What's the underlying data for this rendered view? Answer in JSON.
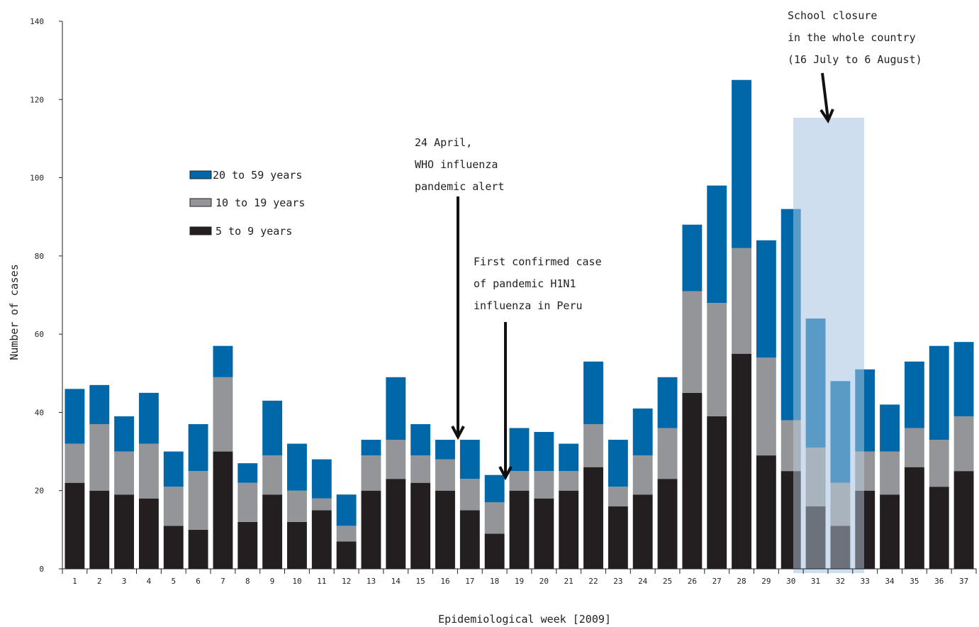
{
  "chart_data": {
    "type": "bar",
    "stacked": true,
    "xlabel": "Epidemiological week [2009]",
    "ylabel": "Number of cases",
    "ylim": [
      0,
      140
    ],
    "yticks": [
      0,
      20,
      40,
      60,
      80,
      100,
      120,
      140
    ],
    "grid": false,
    "legend_position": "upper-left",
    "categories": [
      "1",
      "2",
      "3",
      "4",
      "5",
      "6",
      "7",
      "8",
      "9",
      "10",
      "11",
      "12",
      "13",
      "14",
      "15",
      "16",
      "17",
      "18",
      "19",
      "20",
      "21",
      "22",
      "23",
      "24",
      "25",
      "26",
      "27",
      "28",
      "29",
      "30",
      "31",
      "32",
      "33",
      "34",
      "35",
      "36",
      "37"
    ],
    "series": [
      {
        "name": "5 to 9 years",
        "color": "#231f20",
        "values": [
          22,
          20,
          19,
          18,
          11,
          10,
          30,
          12,
          19,
          12,
          15,
          7,
          20,
          23,
          22,
          20,
          15,
          9,
          20,
          18,
          20,
          26,
          16,
          19,
          23,
          45,
          39,
          55,
          29,
          25,
          16,
          11,
          20,
          19,
          26,
          21,
          25
        ]
      },
      {
        "name": "10 to 19 years",
        "color": "#939598",
        "values": [
          10,
          17,
          11,
          14,
          10,
          15,
          19,
          10,
          10,
          8,
          3,
          4,
          9,
          10,
          7,
          8,
          8,
          8,
          5,
          7,
          5,
          11,
          5,
          10,
          13,
          26,
          29,
          27,
          25,
          13,
          15,
          11,
          10,
          11,
          10,
          12,
          14
        ]
      },
      {
        "name": "20 to 59 years",
        "color": "#0068a8",
        "values": [
          14,
          10,
          9,
          13,
          9,
          12,
          8,
          5,
          14,
          12,
          10,
          8,
          4,
          16,
          8,
          5,
          10,
          7,
          11,
          10,
          7,
          16,
          12,
          12,
          13,
          17,
          30,
          43,
          30,
          54,
          33,
          26,
          21,
          12,
          17,
          24,
          19
        ]
      }
    ],
    "legend_order": [
      "20 to 59 years",
      "10 to 19 years",
      "5 to 9 years"
    ],
    "highlight": {
      "from_week": "30",
      "to_week": "32",
      "color": "#c5d8eb"
    },
    "annotations": [
      {
        "id": "school",
        "lines": [
          "School closure",
          "in the whole country",
          "(16 July to 6 August)"
        ],
        "week": "31"
      },
      {
        "id": "who",
        "lines": [
          "24 April,",
          "WHO influenza",
          "pandemic alert"
        ],
        "week": "16-17"
      },
      {
        "id": "first",
        "lines": [
          "First confirmed case",
          "of pandemic H1N1",
          "influenza in Peru"
        ],
        "week": "18"
      }
    ]
  }
}
